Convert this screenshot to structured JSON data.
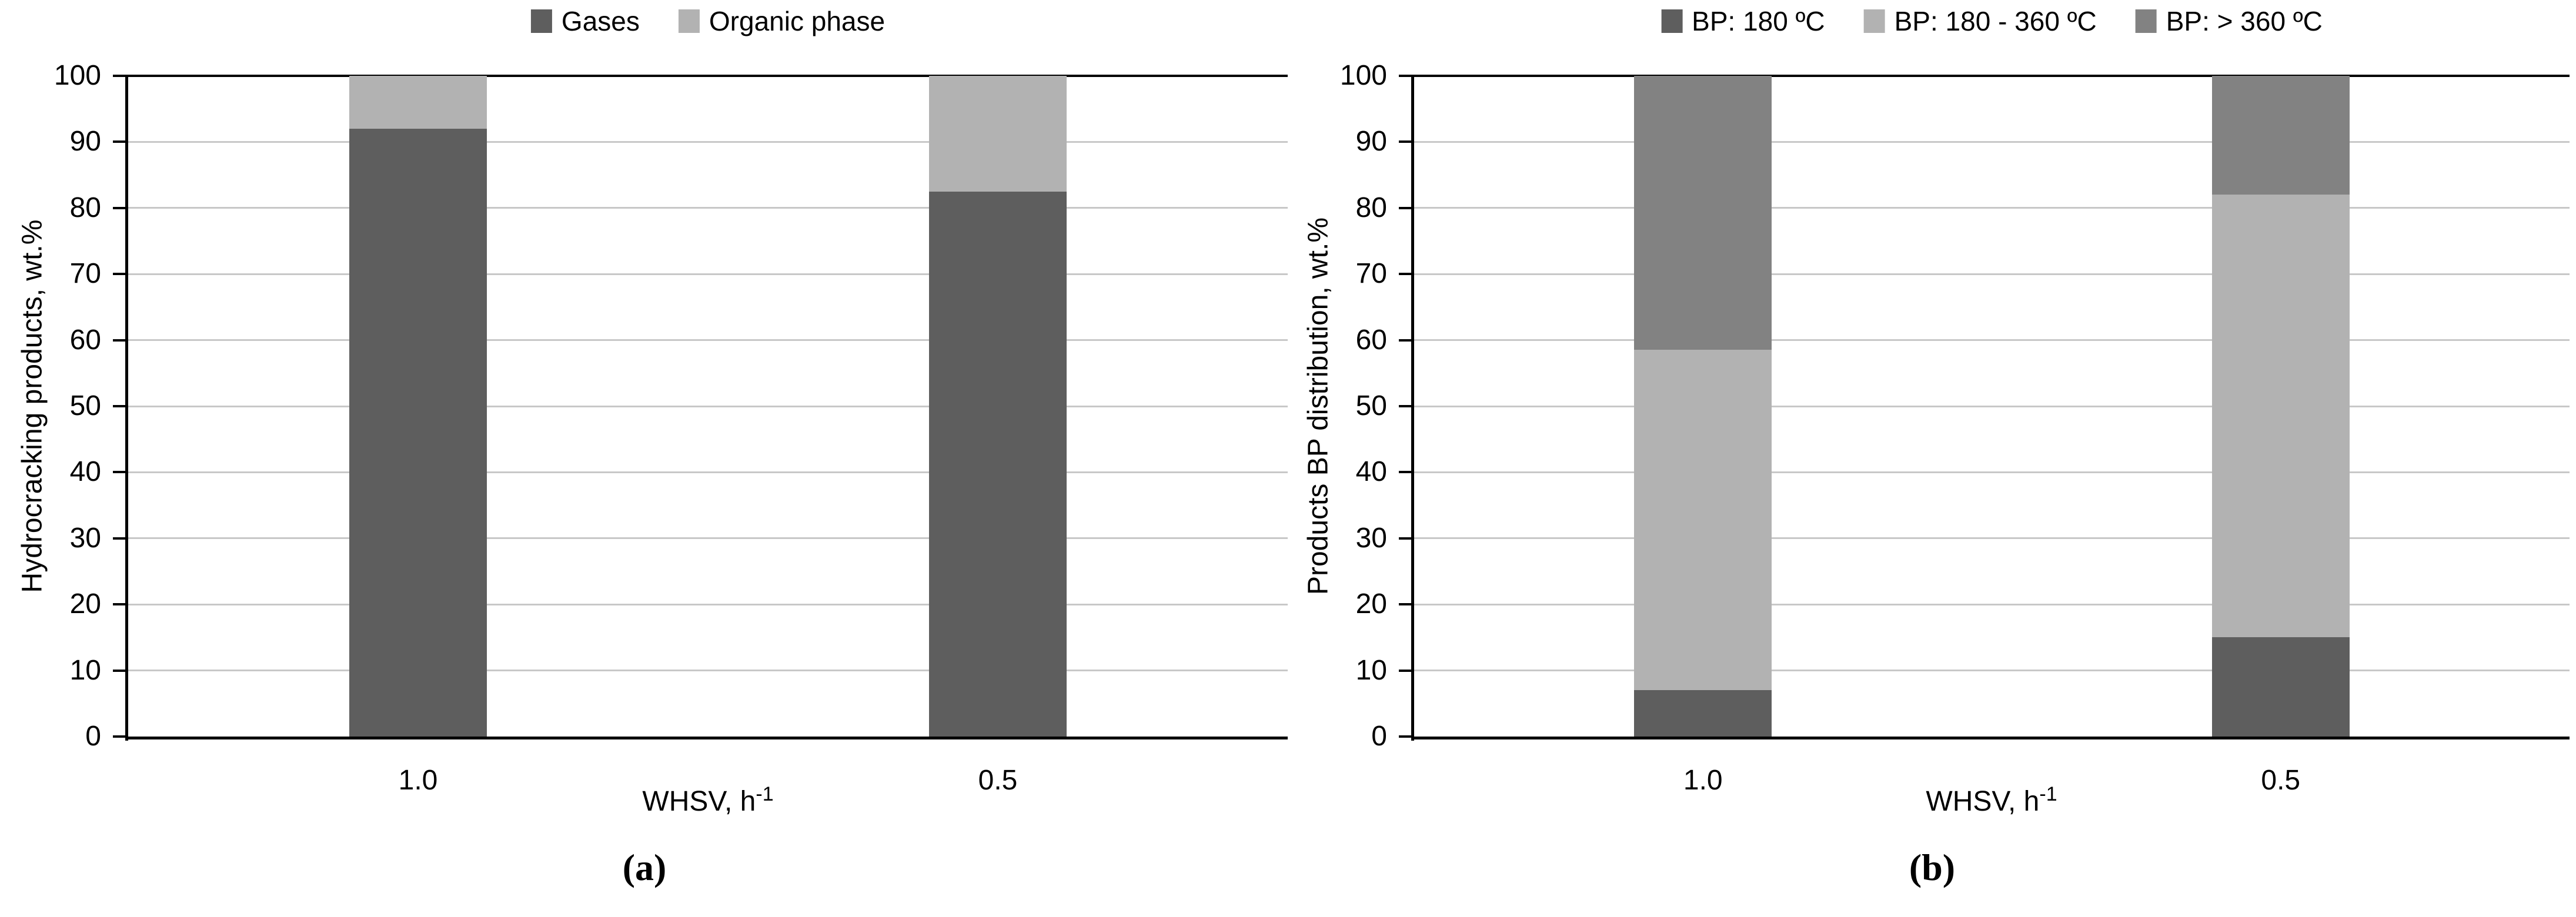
{
  "page": {
    "background": "#ffffff"
  },
  "colors": {
    "axis": "#000000",
    "gridline": "#c8c8c8",
    "text": "#000000"
  },
  "chart_data": [
    {
      "type": "bar",
      "stacked": true,
      "panel_caption": "(a)",
      "categories": [
        "1.0",
        "0.5"
      ],
      "series": [
        {
          "name": "Gases",
          "color": "#5e5e5e",
          "values": [
            92,
            82.5
          ]
        },
        {
          "name": "Organic phase",
          "color": "#b2b2b2",
          "values": [
            8,
            17.5
          ]
        }
      ],
      "xlabel_base": "WHSV, h",
      "xlabel_superscript": "-1",
      "ylabel": "Hydrocracking products, wt.%",
      "ylim": [
        0,
        100
      ],
      "yticks": [
        0,
        10,
        20,
        30,
        40,
        50,
        60,
        70,
        80,
        90,
        100
      ],
      "grid": "horizontal",
      "legend_position": "top"
    },
    {
      "type": "bar",
      "stacked": true,
      "panel_caption": "(b)",
      "categories": [
        "1.0",
        "0.5"
      ],
      "series": [
        {
          "name": "BP: 180 ºC",
          "color": "#5e5e5e",
          "values": [
            7,
            15
          ]
        },
        {
          "name": "BP: 180 - 360 ºC",
          "color": "#b2b2b2",
          "values": [
            51.5,
            67
          ]
        },
        {
          "name": "BP: > 360 ºC",
          "color": "#828282",
          "values": [
            41.5,
            18
          ]
        }
      ],
      "xlabel_base": "WHSV, h",
      "xlabel_superscript": "-1",
      "ylabel": "Products BP distribution, wt.%",
      "ylim": [
        0,
        100
      ],
      "yticks": [
        0,
        10,
        20,
        30,
        40,
        50,
        60,
        70,
        80,
        90,
        100
      ],
      "grid": "horizontal",
      "legend_position": "top"
    }
  ]
}
